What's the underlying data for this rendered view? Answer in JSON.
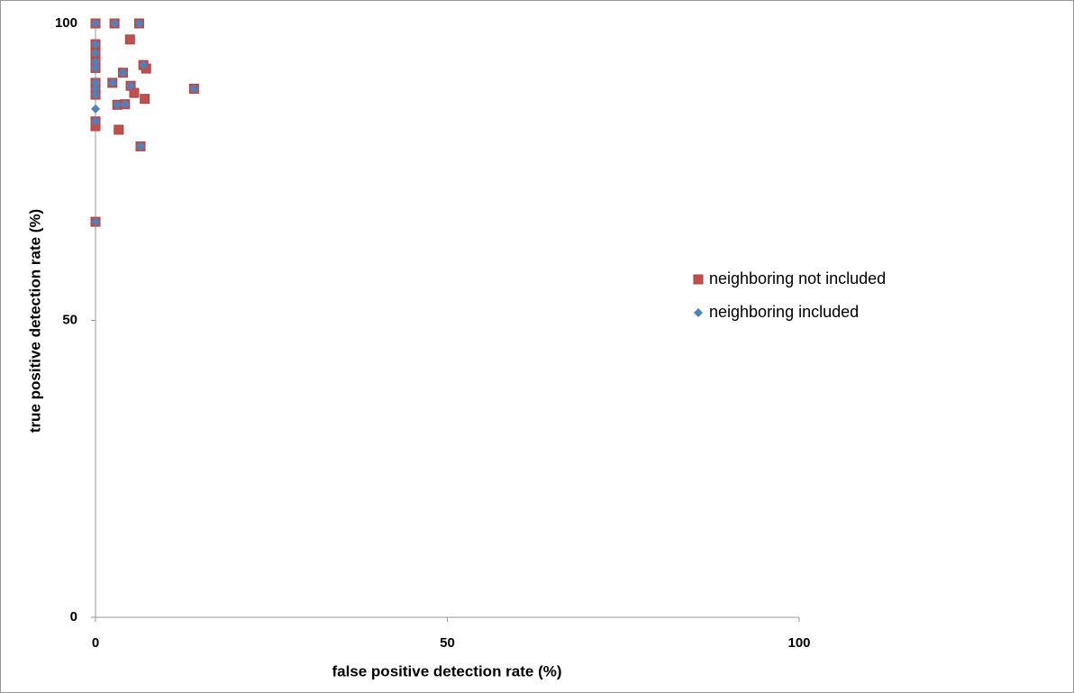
{
  "chart_data": {
    "type": "scatter",
    "x_label": "false positive detection rate (%)",
    "y_label": "true positive detection rate (%)",
    "xlim": [
      0,
      100
    ],
    "ylim": [
      0,
      100
    ],
    "xticks": [
      0,
      50,
      100
    ],
    "yticks": [
      0,
      50,
      100
    ],
    "grid": false,
    "legend": "right",
    "series": [
      {
        "name": "neighboring not included",
        "color": "#c0504d",
        "marker": "square",
        "x": [
          0,
          2.7,
          6.2,
          0,
          0,
          0,
          0,
          6.8,
          3.9,
          2.4,
          0,
          0,
          5,
          14,
          0,
          3.1,
          4.2,
          0,
          6.4,
          0,
          4.9,
          7.2,
          5.5,
          7,
          3.3,
          0
        ],
        "y": [
          100,
          100,
          100,
          96.5,
          95,
          93.5,
          92.5,
          93,
          91.7,
          90,
          90,
          89,
          89.5,
          89,
          88,
          86.3,
          86.4,
          83.5,
          79.3,
          66.6,
          97.3,
          92.4,
          88.3,
          87.3,
          82.1,
          82.7
        ]
      },
      {
        "name": "neighboring included",
        "color": "#4f81bd",
        "marker": "diamond",
        "x": [
          0,
          2.7,
          6.2,
          0,
          0,
          0,
          0,
          6.8,
          3.9,
          2.4,
          0,
          0,
          5,
          14,
          0,
          3.1,
          4.2,
          0,
          0,
          6.4,
          0
        ],
        "y": [
          100,
          100,
          100,
          96.5,
          95,
          93.5,
          92.5,
          93,
          91.7,
          90,
          90,
          89,
          89.5,
          89,
          88,
          86.3,
          86.4,
          85.6,
          83.5,
          79.3,
          66.6
        ]
      }
    ]
  }
}
